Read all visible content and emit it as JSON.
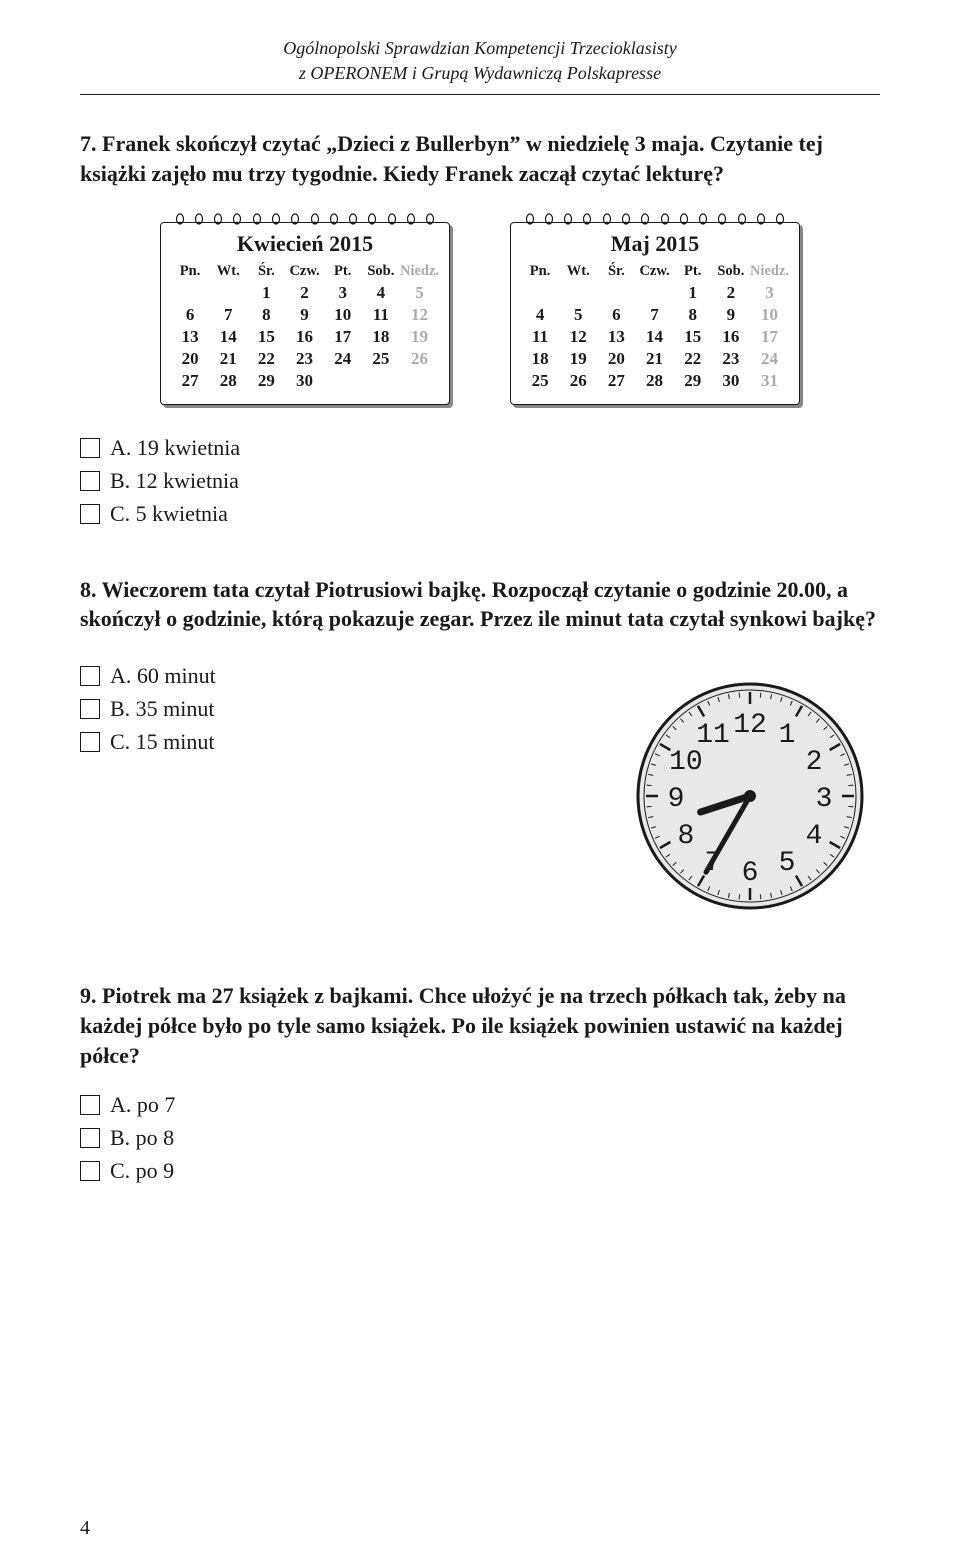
{
  "header": {
    "line1": "Ogólnopolski Sprawdzian Kompetencji Trzecioklasisty",
    "line2": "z OPERONEM i Grupą Wydawniczą Polskapresse"
  },
  "q7": {
    "text": "7. Franek skończył czytać „Dzieci z Bullerbyn” w niedzielę 3 maja. Czytanie tej książki zajęło mu trzy tygodnie. Kiedy Franek zaczął czytać lekturę?",
    "answers": {
      "a": "A. 19 kwietnia",
      "b": "B. 12 kwietnia",
      "c": "C. 5 kwietnia"
    }
  },
  "calApril": {
    "title": "Kwiecień 2015",
    "heads": [
      "Pn.",
      "Wt.",
      "Śr.",
      "Czw.",
      "Pt.",
      "Sob.",
      "Niedz."
    ],
    "grid": [
      [
        "",
        "",
        "1",
        "2",
        "3",
        "4",
        "5"
      ],
      [
        "6",
        "7",
        "8",
        "9",
        "10",
        "11",
        "12"
      ],
      [
        "13",
        "14",
        "15",
        "16",
        "17",
        "18",
        "19"
      ],
      [
        "20",
        "21",
        "22",
        "23",
        "24",
        "25",
        "26"
      ],
      [
        "27",
        "28",
        "29",
        "30",
        "",
        "",
        ""
      ]
    ]
  },
  "calMay": {
    "title": "Maj 2015",
    "heads": [
      "Pn.",
      "Wt.",
      "Śr.",
      "Czw.",
      "Pt.",
      "Sob.",
      "Niedz."
    ],
    "grid": [
      [
        "",
        "",
        "",
        "",
        "1",
        "2",
        "3"
      ],
      [
        "4",
        "5",
        "6",
        "7",
        "8",
        "9",
        "10"
      ],
      [
        "11",
        "12",
        "13",
        "14",
        "15",
        "16",
        "17"
      ],
      [
        "18",
        "19",
        "20",
        "21",
        "22",
        "23",
        "24"
      ],
      [
        "25",
        "26",
        "27",
        "28",
        "29",
        "30",
        "31"
      ]
    ]
  },
  "q8": {
    "text": "8. Wieczorem tata czytał Piotrusiowi bajkę. Rozpoczął czytanie o godzinie 20.00, a skończył o godzinie, którą pokazuje zegar. Przez ile minut tata czytał synkowi bajkę?",
    "answers": {
      "a": "A. 60 minut",
      "b": "B. 35 minut",
      "c": "C. 15 minut"
    }
  },
  "clock": {
    "numbers": [
      "12",
      "1",
      "2",
      "3",
      "4",
      "5",
      "6",
      "7",
      "8",
      "9",
      "10",
      "11"
    ],
    "hour_angle": 252,
    "minute_angle": 210,
    "face_fill": "#e8e8e8",
    "stroke": "#1a1a1a",
    "font_family": "Courier New"
  },
  "q9": {
    "text": "9. Piotrek ma 27 książek z bajkami. Chce ułożyć je na trzech półkach tak, żeby na każdej półce było po tyle samo książek. Po ile książek powinien ustawić na każdej półce?",
    "answers": {
      "a": "A. po 7",
      "b": "B. po 8",
      "c": "C. po 9"
    }
  },
  "pageNum": "4"
}
